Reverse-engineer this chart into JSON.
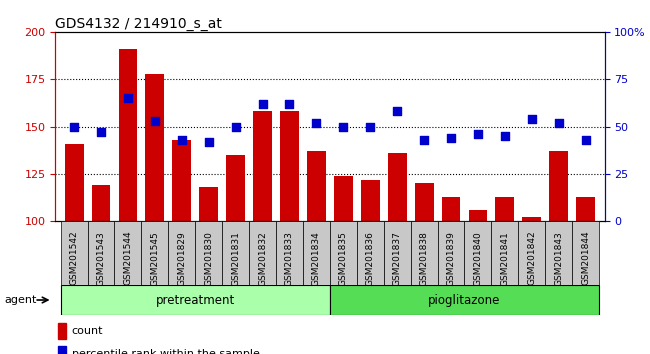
{
  "title": "GDS4132 / 214910_s_at",
  "samples": [
    "GSM201542",
    "GSM201543",
    "GSM201544",
    "GSM201545",
    "GSM201829",
    "GSM201830",
    "GSM201831",
    "GSM201832",
    "GSM201833",
    "GSM201834",
    "GSM201835",
    "GSM201836",
    "GSM201837",
    "GSM201838",
    "GSM201839",
    "GSM201840",
    "GSM201841",
    "GSM201842",
    "GSM201843",
    "GSM201844"
  ],
  "counts": [
    141,
    119,
    191,
    178,
    143,
    118,
    135,
    158,
    158,
    137,
    124,
    122,
    136,
    120,
    113,
    106,
    113,
    102,
    137,
    113
  ],
  "percentile": [
    50,
    47,
    65,
    53,
    43,
    42,
    50,
    62,
    62,
    52,
    50,
    50,
    58,
    43,
    44,
    46,
    45,
    54,
    52,
    43
  ],
  "pretreatment_count": 10,
  "pioglitazone_count": 10,
  "ylim_left": [
    100,
    200
  ],
  "ylim_right": [
    0,
    100
  ],
  "yticks_left": [
    100,
    125,
    150,
    175,
    200
  ],
  "yticks_right": [
    0,
    25,
    50,
    75,
    100
  ],
  "ytick_labels_right": [
    "0",
    "25",
    "50",
    "75",
    "100%"
  ],
  "bar_color": "#cc0000",
  "dot_color": "#0000cc",
  "pretreatment_color": "#aaffaa",
  "pioglitazone_color": "#55dd55",
  "tick_bg_color": "#bbbbbb",
  "plot_bg": "#ffffff"
}
